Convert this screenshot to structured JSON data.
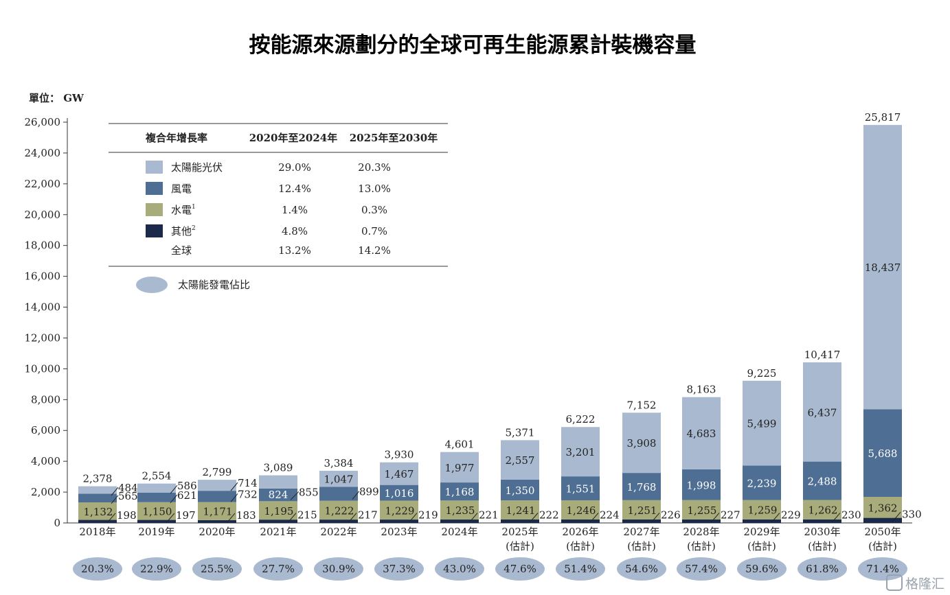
{
  "watermark": "格隆汇",
  "chart_data": {
    "type": "bar",
    "stacked": true,
    "title": "按能源來源劃分的全球可再生能源累計裝機容量",
    "unit_label": "單位： GW",
    "ylim": [
      0,
      26000
    ],
    "yticks": [
      "0",
      "2,000",
      "4,000",
      "6,000",
      "8,000",
      "10,000",
      "12,000",
      "14,000",
      "16,000",
      "18,000",
      "20,000",
      "22,000",
      "24,000",
      "26,000"
    ],
    "yticks_values": [
      0,
      2000,
      4000,
      6000,
      8000,
      10000,
      12000,
      14000,
      16000,
      18000,
      20000,
      22000,
      24000,
      26000
    ],
    "categories": [
      [
        "2018年"
      ],
      [
        "2019年"
      ],
      [
        "2020年"
      ],
      [
        "2021年"
      ],
      [
        "2022年"
      ],
      [
        "2023年"
      ],
      [
        "2024年"
      ],
      [
        "2025年",
        "(估計)"
      ],
      [
        "2026年",
        "(估計)"
      ],
      [
        "2027年",
        "(估計)"
      ],
      [
        "2028年",
        "(估計)"
      ],
      [
        "2029年",
        "(估計)"
      ],
      [
        "2030年",
        "(估計)"
      ],
      [
        "2050年",
        "(估計)"
      ]
    ],
    "series": [
      {
        "name": "其他",
        "sup": "2",
        "color": "#1b2a4a",
        "values": [
          198,
          197,
          183,
          215,
          217,
          219,
          221,
          222,
          224,
          226,
          227,
          229,
          230,
          330
        ],
        "labels": [
          "198",
          "197",
          "183",
          "215",
          "217",
          "219",
          "221",
          "222",
          "224",
          "226",
          "227",
          "229",
          "230",
          "330"
        ]
      },
      {
        "name": "水電",
        "sup": "1",
        "color": "#a8ab7a",
        "values": [
          1132,
          1150,
          1171,
          1195,
          1222,
          1229,
          1235,
          1241,
          1246,
          1251,
          1255,
          1259,
          1262,
          1362
        ],
        "labels": [
          "1,132",
          "1,150",
          "1,171",
          "1,195",
          "1,222",
          "1,229",
          "1,235",
          "1,241",
          "1,246",
          "1,251",
          "1,255",
          "1,259",
          "1,262",
          "1,362"
        ]
      },
      {
        "name": "風電",
        "sup": "",
        "color": "#4e6f93",
        "values": [
          565,
          621,
          732,
          824,
          899,
          1016,
          1168,
          1350,
          1551,
          1768,
          1998,
          2239,
          2488,
          5688
        ],
        "labels": [
          "565",
          "621",
          "732",
          "824",
          "899",
          "1,016",
          "1,168",
          "1,350",
          "1,551",
          "1,768",
          "1,998",
          "2,239",
          "2,488",
          "5,688"
        ]
      },
      {
        "name": "太陽能光伏",
        "sup": "",
        "color": "#a9b9cf",
        "values": [
          484,
          586,
          714,
          855,
          1047,
          1467,
          1977,
          2557,
          3201,
          3908,
          4683,
          5499,
          6437,
          18437
        ],
        "labels": [
          "484",
          "586",
          "714",
          "855",
          "1,047",
          "1,467",
          "1,977",
          "2,557",
          "3,201",
          "3,908",
          "4,683",
          "5,499",
          "6,437",
          "18,437"
        ]
      }
    ],
    "totals": [
      2378,
      2554,
      2799,
      3089,
      3384,
      3930,
      4601,
      5371,
      6222,
      7152,
      8163,
      9225,
      10417,
      25817
    ],
    "total_labels": [
      "2,378",
      "2,554",
      "2,799",
      "3,089",
      "3,384",
      "3,930",
      "4,601",
      "5,371",
      "6,222",
      "7,152",
      "8,163",
      "9,225",
      "10,417",
      "25,817"
    ],
    "solar_share": [
      "20.3%",
      "22.9%",
      "25.5%",
      "27.7%",
      "30.9%",
      "37.3%",
      "43.0%",
      "47.6%",
      "51.4%",
      "54.6%",
      "57.4%",
      "59.6%",
      "61.8%",
      "71.4%"
    ],
    "solar_share_color": "#a9b9cf",
    "legend": {
      "placement": "top-left",
      "header": [
        "複合年增長率",
        "2020年至2024年",
        "2025年至2030年"
      ],
      "rows": [
        {
          "name": "太陽能光伏",
          "sup": "",
          "color": "#a9b9cf",
          "cagr1": "29.0%",
          "cagr2": "20.3%"
        },
        {
          "name": "風電",
          "sup": "",
          "color": "#4e6f93",
          "cagr1": "12.4%",
          "cagr2": "13.0%"
        },
        {
          "name": "水電",
          "sup": "1",
          "color": "#a8ab7a",
          "cagr1": "1.4%",
          "cagr2": "0.3%"
        },
        {
          "name": "其他",
          "sup": "2",
          "color": "#1b2a4a",
          "cagr1": "4.8%",
          "cagr2": "0.7%"
        },
        {
          "name": "全球",
          "sup": "",
          "color": "",
          "cagr1": "13.2%",
          "cagr2": "14.2%"
        }
      ],
      "share_label": "太陽能發電佔比",
      "share_color": "#a9b9cf"
    }
  }
}
